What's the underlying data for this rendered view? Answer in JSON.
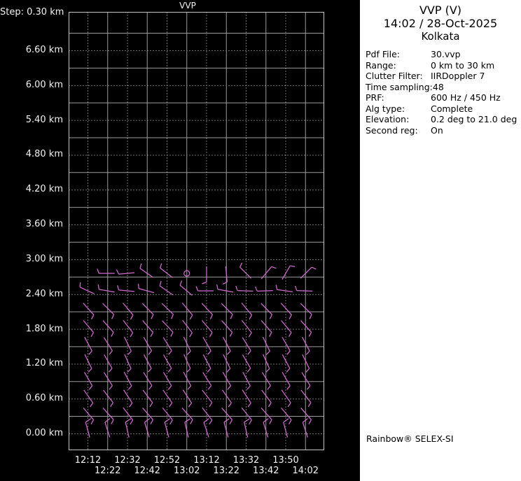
{
  "chart_data": {
    "type": "wind_barb_time_height",
    "title": "VVP",
    "step_label": "Step: 0.30 km",
    "y_tick_labels": [
      "6.60 km",
      "6.00 km",
      "5.40 km",
      "4.80 km",
      "4.20 km",
      "3.60 km",
      "3.00 km",
      "2.40 km",
      "1.80 km",
      "1.20 km",
      "0.60 km",
      "0.00 km"
    ],
    "x_tick_labels_row1": [
      "12:12",
      "12:32",
      "12:52",
      "13:12",
      "13:32",
      "13:50"
    ],
    "x_tick_labels_row2": [
      "12:22",
      "12:42",
      "13:02",
      "13:22",
      "13:42",
      "14:02"
    ],
    "times": [
      "12:12",
      "12:22",
      "12:32",
      "12:42",
      "12:52",
      "13:02",
      "13:12",
      "13:22",
      "13:32",
      "13:42",
      "13:50",
      "14:02"
    ],
    "levels_km": [
      2.7,
      2.4,
      2.1,
      1.8,
      1.5,
      1.2,
      0.9,
      0.6,
      0.3,
      0.0
    ],
    "y_axis_range_km": [
      -0.3,
      7.2
    ],
    "grid": "solid lines every 0.60 km and every 2nd time column, dotted lines on labeled ticks",
    "legend_position": "none",
    "calm_symbol": "circle at 13:02 / 2.70 km",
    "angle_convention": "barb tail direction in screen degrees: 0=right, 90=down, 180=left, 270=up",
    "barb_tail_angles_deg": [
      [
        null,
        180,
        175,
        215,
        218,
        "C",
        90,
        85,
        225,
        310,
        300,
        315
      ],
      [
        205,
        190,
        185,
        195,
        215,
        220,
        180,
        190,
        182,
        178,
        188,
        182
      ],
      [
        48,
        45,
        50,
        46,
        44,
        50,
        47,
        45,
        50,
        46,
        48,
        45
      ],
      [
        50,
        48,
        52,
        49,
        47,
        52,
        50,
        48,
        52,
        49,
        50,
        48
      ],
      [
        62,
        58,
        64,
        60,
        58,
        64,
        60,
        62,
        58,
        64,
        60,
        62
      ],
      [
        64,
        60,
        66,
        62,
        60,
        66,
        62,
        64,
        60,
        66,
        62,
        64
      ],
      [
        60,
        58,
        62,
        58,
        60,
        62,
        58,
        60,
        62,
        58,
        60,
        58
      ],
      [
        55,
        52,
        57,
        53,
        55,
        57,
        52,
        55,
        57,
        53,
        55,
        52
      ],
      [
        50,
        48,
        52,
        49,
        51,
        48,
        52,
        49,
        51,
        48,
        50,
        49
      ],
      [
        255,
        252,
        257,
        253,
        255,
        257,
        252,
        255,
        257,
        253,
        255,
        252
      ]
    ],
    "colors": {
      "background": "#000000",
      "barb": "#d36ad3",
      "grid_solid": "#9c9c9c",
      "grid_dotted": "#e2e2e2",
      "border": "#c4c4c4",
      "axis_text": "#f2f2f2"
    }
  },
  "panel": {
    "title": "VVP (V)",
    "datetime": "14:02 / 28-Oct-2025",
    "site": "Kolkata",
    "fields": [
      {
        "label": "Pdf File:",
        "value": "30.vvp"
      },
      {
        "label": "Range:",
        "value": "0 km to 30 km"
      },
      {
        "label": "Clutter Filter:",
        "value": "IIRDoppler 7"
      },
      {
        "label": "Time sampling:",
        "value": "48"
      },
      {
        "label": "PRF:",
        "value": "600 Hz / 450 Hz"
      },
      {
        "label": "Alg type:",
        "value": "Complete"
      },
      {
        "label": "Elevation:",
        "value": "0.2 deg to 21.0 deg"
      },
      {
        "label": "Second reg:",
        "value": "On"
      }
    ],
    "footer": "Rainbow® SELEX-SI",
    "background": "#ffffff"
  }
}
